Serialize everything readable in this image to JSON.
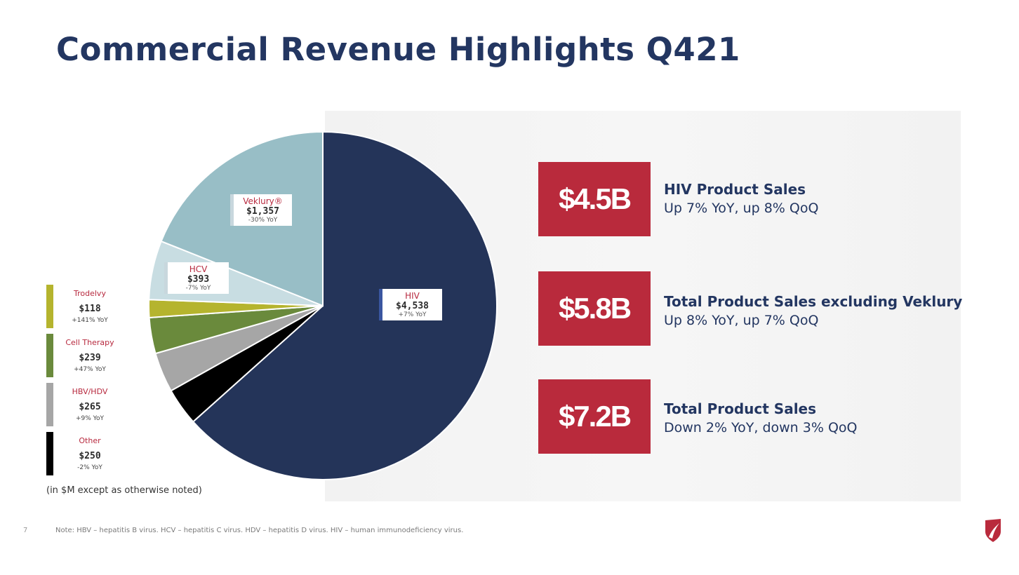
{
  "title": "Commercial Revenue Highlights Q421",
  "units_note": "(in $M except as otherwise noted)",
  "page_number": "7",
  "footnote": "Note: HBV – hepatitis B virus. HCV – hepatitis C virus. HDV – hepatitis D virus. HIV – human immunodeficiency virus.",
  "colors": {
    "hiv": "#243459",
    "veklury": "#98bec6",
    "hcv": "#c8dde2",
    "trodelvy": "#b5b42e",
    "cell_therapy": "#6a8a3c",
    "hbv_hdv": "#a6a6a6",
    "other": "#000000",
    "accent_red": "#b92a3c",
    "navy": "#233661"
  },
  "chart_data": {
    "type": "pie",
    "title": "",
    "slices": [
      {
        "key": "hiv",
        "label": "HIV",
        "value": 4538,
        "value_label": "$4,538",
        "change": "+7% YoY"
      },
      {
        "key": "other",
        "label": "Other",
        "value": 250,
        "value_label": "$250",
        "change": "-2% YoY"
      },
      {
        "key": "hbv_hdv",
        "label": "HBV/HDV",
        "value": 265,
        "value_label": "$265",
        "change": "+9% YoY"
      },
      {
        "key": "cell_therapy",
        "label": "Cell Therapy",
        "value": 239,
        "value_label": "$239",
        "change": "+47% YoY"
      },
      {
        "key": "trodelvy",
        "label": "Trodelvy",
        "value": 118,
        "value_label": "$118",
        "change": "+141% YoY"
      },
      {
        "key": "hcv",
        "label": "HCV",
        "value": 393,
        "value_label": "$393",
        "change": "-7% YoY"
      },
      {
        "key": "veklury",
        "label": "Veklury®",
        "value": 1357,
        "value_label": "$1,357",
        "change": "-30% YoY"
      }
    ]
  },
  "kpis": [
    {
      "value": "$4.5B",
      "title": "HIV Product Sales",
      "subtitle": "Up 7% YoY, up 8% QoQ"
    },
    {
      "value": "$5.8B",
      "title": "Total Product Sales excluding Veklury",
      "subtitle": "Up 8% YoY, up 7% QoQ"
    },
    {
      "value": "$7.2B",
      "title": "Total Product Sales",
      "subtitle": "Down 2% YoY, down 3% QoQ"
    }
  ]
}
